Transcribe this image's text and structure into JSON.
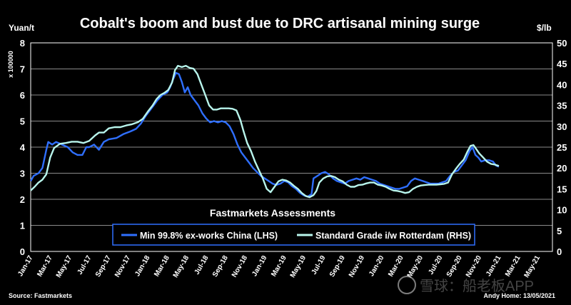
{
  "chart_data": {
    "type": "line",
    "title": "Cobalt's boom and bust due to DRC artisanal mining surge",
    "left_axis": {
      "unit": "Yuan/t",
      "multiplier_label": "x 100000",
      "ylim": [
        0,
        8
      ],
      "ticks": [
        "0",
        "1",
        "2",
        "3",
        "4",
        "5",
        "6",
        "7",
        "8"
      ]
    },
    "right_axis": {
      "unit": "$/lb",
      "ylim": [
        0,
        50
      ],
      "ticks": [
        "0",
        "5",
        "10",
        "15",
        "20",
        "25",
        "30",
        "35",
        "40",
        "45",
        "50"
      ]
    },
    "x_ticks": [
      "Jan-17",
      "Mar-17",
      "May-17",
      "Jul-17",
      "Sep-17",
      "Nov-17",
      "Jan-18",
      "Mar-18",
      "May-18",
      "Jul-18",
      "Sep-18",
      "Nov-18",
      "Jan-19",
      "Mar-19",
      "May-19",
      "Jul-19",
      "Sep-19",
      "Nov-19",
      "Jan-20",
      "Mar-20",
      "May-20",
      "Jul-20",
      "Sep-20",
      "Nov-20",
      "Jan-21",
      "Mar-21",
      "May-21"
    ],
    "x_range_months": [
      0,
      53.5
    ],
    "legend_title": "Fastmarkets Assessments",
    "series": [
      {
        "name": "Min 99.8% ex-works China (LHS)",
        "axis": "left",
        "color": "#2f6fff",
        "points": [
          [
            0,
            2.7
          ],
          [
            0.3,
            2.9
          ],
          [
            0.8,
            3.0
          ],
          [
            1.2,
            3.2
          ],
          [
            1.6,
            3.9
          ],
          [
            1.8,
            4.2
          ],
          [
            2.2,
            4.1
          ],
          [
            2.6,
            4.2
          ],
          [
            3.2,
            4.1
          ],
          [
            3.8,
            4.0
          ],
          [
            4.3,
            3.8
          ],
          [
            4.8,
            3.7
          ],
          [
            5.3,
            3.7
          ],
          [
            5.7,
            4.0
          ],
          [
            6.0,
            4.0
          ],
          [
            6.5,
            4.1
          ],
          [
            7.0,
            3.9
          ],
          [
            7.5,
            4.2
          ],
          [
            8.0,
            4.3
          ],
          [
            8.8,
            4.35
          ],
          [
            9.5,
            4.5
          ],
          [
            10.2,
            4.6
          ],
          [
            10.8,
            4.7
          ],
          [
            11.3,
            4.9
          ],
          [
            11.8,
            5.2
          ],
          [
            12.2,
            5.4
          ],
          [
            12.6,
            5.6
          ],
          [
            13.0,
            5.8
          ],
          [
            13.5,
            6.0
          ],
          [
            14.0,
            6.1
          ],
          [
            14.3,
            6.3
          ],
          [
            14.6,
            6.6
          ],
          [
            14.9,
            6.85
          ],
          [
            15.2,
            6.8
          ],
          [
            15.5,
            6.5
          ],
          [
            15.8,
            6.1
          ],
          [
            16.1,
            6.3
          ],
          [
            16.4,
            6.0
          ],
          [
            16.8,
            5.8
          ],
          [
            17.2,
            5.6
          ],
          [
            17.6,
            5.3
          ],
          [
            18.0,
            5.1
          ],
          [
            18.4,
            4.95
          ],
          [
            18.8,
            5.0
          ],
          [
            19.2,
            4.95
          ],
          [
            19.6,
            5.0
          ],
          [
            20.0,
            4.95
          ],
          [
            20.4,
            4.8
          ],
          [
            20.8,
            4.5
          ],
          [
            21.2,
            4.1
          ],
          [
            21.6,
            3.8
          ],
          [
            22.0,
            3.6
          ],
          [
            22.4,
            3.4
          ],
          [
            22.8,
            3.2
          ],
          [
            23.2,
            3.05
          ],
          [
            23.6,
            2.9
          ],
          [
            24.0,
            2.8
          ],
          [
            24.4,
            2.7
          ],
          [
            24.8,
            2.6
          ],
          [
            25.2,
            2.55
          ],
          [
            25.6,
            2.6
          ],
          [
            26.0,
            2.7
          ],
          [
            26.4,
            2.65
          ],
          [
            26.8,
            2.5
          ],
          [
            27.2,
            2.4
          ],
          [
            27.6,
            2.25
          ],
          [
            28.0,
            2.15
          ],
          [
            28.4,
            2.1
          ],
          [
            28.8,
            2.2
          ],
          [
            29.0,
            2.8
          ],
          [
            29.4,
            2.9
          ],
          [
            29.8,
            3.0
          ],
          [
            30.2,
            3.05
          ],
          [
            30.6,
            2.95
          ],
          [
            31.0,
            2.8
          ],
          [
            31.4,
            2.7
          ],
          [
            31.8,
            2.65
          ],
          [
            32.2,
            2.6
          ],
          [
            32.6,
            2.7
          ],
          [
            33.0,
            2.75
          ],
          [
            33.4,
            2.8
          ],
          [
            33.8,
            2.75
          ],
          [
            34.2,
            2.85
          ],
          [
            34.6,
            2.8
          ],
          [
            35.0,
            2.75
          ],
          [
            35.4,
            2.7
          ],
          [
            35.8,
            2.6
          ],
          [
            36.2,
            2.55
          ],
          [
            36.6,
            2.5
          ],
          [
            37.0,
            2.45
          ],
          [
            37.4,
            2.4
          ],
          [
            37.8,
            2.4
          ],
          [
            38.2,
            2.45
          ],
          [
            38.6,
            2.5
          ],
          [
            39.0,
            2.7
          ],
          [
            39.4,
            2.8
          ],
          [
            39.8,
            2.75
          ],
          [
            40.2,
            2.7
          ],
          [
            40.6,
            2.65
          ],
          [
            41.0,
            2.6
          ],
          [
            41.4,
            2.6
          ],
          [
            41.8,
            2.6
          ],
          [
            42.2,
            2.65
          ],
          [
            42.6,
            2.7
          ],
          [
            43.0,
            2.9
          ],
          [
            43.4,
            3.05
          ],
          [
            43.8,
            3.1
          ],
          [
            44.2,
            3.3
          ],
          [
            44.6,
            3.5
          ],
          [
            45.0,
            3.85
          ],
          [
            45.3,
            4.0
          ],
          [
            45.6,
            3.7
          ],
          [
            45.9,
            3.6
          ],
          [
            46.2,
            3.45
          ],
          [
            46.6,
            3.5
          ],
          [
            47.0,
            3.5
          ],
          [
            47.4,
            3.45
          ],
          [
            47.7,
            3.3
          ],
          [
            48.0,
            3.25
          ]
        ]
      },
      {
        "name": "Standard Grade i/w Rotterdam (RHS)",
        "axis": "right",
        "color": "#b8f5ec",
        "points": [
          [
            0,
            14.6
          ],
          [
            0.4,
            15.5
          ],
          [
            0.8,
            16.5
          ],
          [
            1.2,
            17.2
          ],
          [
            1.6,
            18.5
          ],
          [
            2.0,
            22.5
          ],
          [
            2.4,
            24.8
          ],
          [
            3.0,
            25.8
          ],
          [
            3.6,
            26.0
          ],
          [
            4.2,
            26.3
          ],
          [
            4.8,
            26.3
          ],
          [
            5.4,
            26.0
          ],
          [
            6.0,
            26.5
          ],
          [
            6.6,
            27.8
          ],
          [
            7.0,
            28.5
          ],
          [
            7.5,
            28.5
          ],
          [
            8.0,
            29.5
          ],
          [
            8.6,
            29.8
          ],
          [
            9.2,
            29.8
          ],
          [
            9.8,
            30.2
          ],
          [
            10.4,
            30.5
          ],
          [
            11.0,
            31.0
          ],
          [
            11.5,
            31.8
          ],
          [
            12.0,
            33.5
          ],
          [
            12.5,
            35.0
          ],
          [
            12.9,
            36.5
          ],
          [
            13.3,
            37.5
          ],
          [
            13.7,
            38.0
          ],
          [
            14.1,
            38.7
          ],
          [
            14.5,
            40.5
          ],
          [
            14.8,
            43.5
          ],
          [
            15.1,
            44.5
          ],
          [
            15.5,
            44.2
          ],
          [
            15.9,
            44.5
          ],
          [
            16.3,
            44.0
          ],
          [
            16.7,
            43.8
          ],
          [
            17.1,
            42.5
          ],
          [
            17.5,
            40.0
          ],
          [
            17.9,
            37.5
          ],
          [
            18.3,
            35.0
          ],
          [
            18.7,
            34.0
          ],
          [
            19.1,
            34.0
          ],
          [
            19.5,
            34.3
          ],
          [
            19.9,
            34.3
          ],
          [
            20.3,
            34.3
          ],
          [
            20.7,
            34.2
          ],
          [
            21.1,
            33.8
          ],
          [
            21.5,
            31.5
          ],
          [
            21.8,
            29.0
          ],
          [
            22.2,
            26.0
          ],
          [
            22.6,
            24.0
          ],
          [
            23.0,
            21.5
          ],
          [
            23.4,
            19.5
          ],
          [
            23.8,
            17.5
          ],
          [
            24.2,
            15.0
          ],
          [
            24.6,
            14.2
          ],
          [
            25.0,
            15.5
          ],
          [
            25.4,
            16.8
          ],
          [
            25.8,
            17.2
          ],
          [
            26.2,
            17.0
          ],
          [
            26.6,
            16.5
          ],
          [
            27.0,
            15.7
          ],
          [
            27.4,
            15.0
          ],
          [
            27.8,
            14.0
          ],
          [
            28.2,
            13.3
          ],
          [
            28.6,
            13.0
          ],
          [
            29.0,
            13.5
          ],
          [
            29.3,
            14.5
          ],
          [
            29.6,
            16.5
          ],
          [
            30.0,
            17.5
          ],
          [
            30.4,
            18.0
          ],
          [
            30.8,
            18.1
          ],
          [
            31.2,
            17.8
          ],
          [
            31.6,
            17.2
          ],
          [
            32.0,
            16.8
          ],
          [
            32.4,
            16.0
          ],
          [
            32.8,
            15.5
          ],
          [
            33.2,
            15.5
          ],
          [
            33.6,
            15.9
          ],
          [
            34.0,
            16.0
          ],
          [
            34.4,
            16.3
          ],
          [
            34.8,
            16.5
          ],
          [
            35.2,
            16.5
          ],
          [
            35.6,
            16.0
          ],
          [
            36.0,
            15.8
          ],
          [
            36.4,
            15.5
          ],
          [
            36.8,
            15.0
          ],
          [
            37.2,
            14.6
          ],
          [
            37.6,
            14.5
          ],
          [
            38.0,
            14.3
          ],
          [
            38.4,
            14.0
          ],
          [
            38.8,
            14.2
          ],
          [
            39.2,
            15.0
          ],
          [
            39.6,
            15.5
          ],
          [
            40.0,
            15.8
          ],
          [
            40.4,
            15.9
          ],
          [
            40.8,
            16.0
          ],
          [
            41.2,
            16.0
          ],
          [
            41.6,
            16.0
          ],
          [
            42.0,
            16.1
          ],
          [
            42.4,
            16.2
          ],
          [
            42.8,
            16.5
          ],
          [
            43.2,
            18.5
          ],
          [
            43.6,
            19.8
          ],
          [
            44.0,
            21.0
          ],
          [
            44.4,
            22.0
          ],
          [
            44.8,
            24.0
          ],
          [
            45.1,
            25.3
          ],
          [
            45.4,
            25.5
          ],
          [
            45.7,
            24.5
          ],
          [
            46.0,
            23.5
          ],
          [
            46.4,
            22.5
          ],
          [
            46.8,
            21.5
          ],
          [
            47.2,
            21.0
          ],
          [
            47.6,
            20.8
          ],
          [
            48.0,
            20.5
          ]
        ]
      }
    ],
    "source": "Source: Fastmarkets",
    "author": "Andy Home: 13/05/2021",
    "watermark": "雪球：船老板APP"
  }
}
